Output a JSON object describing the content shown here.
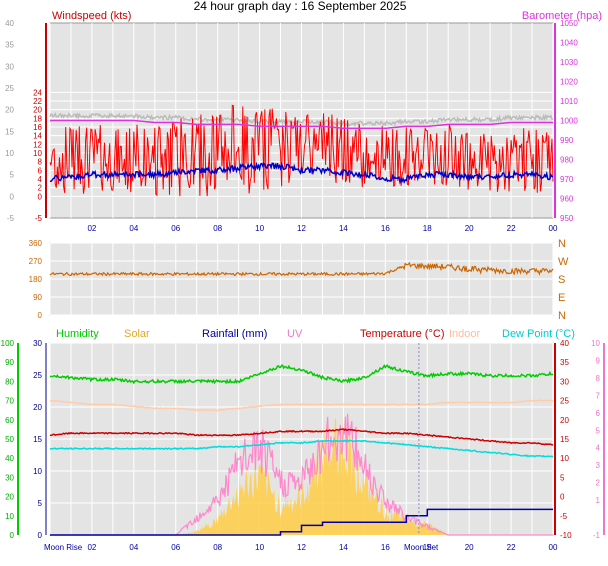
{
  "title": "24 hour graph day : 16 September 2025",
  "time_labels": [
    "02",
    "04",
    "06",
    "08",
    "10",
    "12",
    "14",
    "16",
    "18",
    "20",
    "22",
    "00"
  ],
  "colors": {
    "windspeed": "#ff0000",
    "gust_bar": "#ee1111",
    "wind_avg": "#0000cc",
    "barometer": "#dd33dd",
    "barometer_max": "#bbbbbb",
    "direction": "#cc6600",
    "humidity": "#00cc00",
    "solar": "#ffcc44",
    "rainfall": "#0000aa",
    "uv": "#ff88cc",
    "temperature": "#cc0000",
    "indoor": "#ffccaa",
    "dewpoint": "#00dddd",
    "plot_bg": "#e4e4e4",
    "grid": "#ffffff"
  },
  "chart_data": [
    {
      "type": "line",
      "label_left": "Windspeed (kts)",
      "label_right": "Barometer (hpa)",
      "y_left_ticks": [
        "-5",
        "0",
        "2",
        "4",
        "6",
        "8",
        "10",
        "12",
        "14",
        "16",
        "18",
        "20",
        "22",
        "24"
      ],
      "y_left_outer_ticks": [
        "-5",
        "0",
        "5",
        "10",
        "15",
        "20",
        "25",
        "30",
        "35",
        "40"
      ],
      "y_right_ticks": [
        "950",
        "960",
        "970",
        "980",
        "990",
        "1000",
        "1010",
        "1020",
        "1030",
        "1040",
        "1050"
      ],
      "x_hours": [
        0,
        1,
        2,
        3,
        4,
        5,
        6,
        7,
        8,
        9,
        10,
        11,
        12,
        13,
        14,
        15,
        16,
        17,
        18,
        19,
        20,
        21,
        22,
        23,
        24
      ],
      "series": [
        {
          "name": "Windspeed (kts)",
          "values": [
            8,
            8.5,
            9,
            8.5,
            8,
            8.5,
            9,
            9.5,
            10,
            10.5,
            11,
            11,
            11.5,
            11,
            10.5,
            10,
            9.5,
            9,
            9,
            8.5,
            8,
            8,
            8.5,
            8,
            8
          ]
        },
        {
          "name": "Gust",
          "values": [
            13,
            14,
            14,
            13,
            13,
            14,
            15,
            16,
            17,
            18,
            18,
            17,
            16,
            16,
            15,
            15,
            14,
            13,
            13,
            13,
            12,
            12,
            13,
            13,
            12
          ]
        },
        {
          "name": "Average",
          "values": [
            4,
            4.5,
            5,
            5,
            5,
            5,
            5.5,
            6,
            6,
            6.5,
            7,
            7,
            6,
            6,
            5.5,
            5,
            4,
            4,
            5,
            5,
            4.5,
            4.5,
            5,
            5,
            4.5
          ]
        },
        {
          "name": "Barometer (hpa)",
          "values": [
            1000,
            1000,
            1000,
            1000,
            1000,
            999,
            999,
            998,
            998,
            998,
            997,
            997,
            997,
            997,
            996,
            996,
            996,
            997,
            997,
            998,
            998,
            998,
            999,
            999,
            999
          ]
        }
      ]
    },
    {
      "type": "line",
      "y_ticks": [
        "0",
        "90",
        "180",
        "270",
        "360"
      ],
      "compass_labels": [
        "N",
        "W",
        "S",
        "E",
        "N"
      ],
      "x_hours": [
        0,
        1,
        2,
        3,
        4,
        5,
        6,
        7,
        8,
        9,
        10,
        11,
        12,
        13,
        14,
        15,
        16,
        17,
        18,
        19,
        20,
        21,
        22,
        23,
        24
      ],
      "series": [
        {
          "name": "Direction",
          "values": [
            205,
            205,
            205,
            205,
            205,
            205,
            205,
            205,
            205,
            205,
            205,
            205,
            205,
            205,
            205,
            205,
            208,
            248,
            245,
            240,
            230,
            225,
            220,
            220,
            220
          ]
        }
      ]
    },
    {
      "type": "line",
      "legend": [
        "Humidity",
        "Solar",
        "Rainfall (mm)",
        "UV",
        "Temperature (°C)",
        "Indoor",
        "Dew Point (°C)"
      ],
      "y_humidity_ticks": [
        "0",
        "10",
        "20",
        "30",
        "40",
        "50",
        "60",
        "70",
        "80",
        "90",
        "100"
      ],
      "y_rain_ticks": [
        "0",
        "5",
        "10",
        "15",
        "20",
        "25",
        "30"
      ],
      "y_temp_ticks": [
        "-10",
        "-5",
        "0",
        "5",
        "10",
        "15",
        "20",
        "25",
        "30",
        "35",
        "40"
      ],
      "y_uv_ticks": [
        "-1",
        "1",
        "2",
        "3",
        "4",
        "5",
        "6",
        "7",
        "8",
        "9",
        "10"
      ],
      "x_hours": [
        0,
        1,
        2,
        3,
        4,
        5,
        6,
        7,
        8,
        9,
        10,
        11,
        12,
        13,
        14,
        15,
        16,
        17,
        18,
        19,
        20,
        21,
        22,
        23,
        24
      ],
      "series": [
        {
          "name": "Humidity",
          "values": [
            83,
            82,
            81,
            81,
            80,
            80,
            80,
            80,
            80,
            80,
            84,
            88,
            86,
            82,
            80,
            82,
            88,
            85,
            83,
            84,
            84,
            83,
            83,
            83,
            84
          ]
        },
        {
          "name": "Temperature (°C)",
          "values": [
            16,
            16.5,
            16.5,
            16.5,
            16.5,
            16.5,
            16.5,
            16,
            16,
            16,
            16.5,
            17,
            17,
            17,
            17.5,
            17,
            16.5,
            16.5,
            16,
            15.5,
            15,
            14.5,
            14,
            14,
            13.5
          ]
        },
        {
          "name": "Indoor",
          "values": [
            25,
            24.5,
            24,
            24,
            23.5,
            23,
            23,
            22.5,
            22.5,
            23,
            23.5,
            24,
            24,
            24,
            24,
            24,
            24,
            24,
            24,
            24.5,
            24.5,
            24.5,
            24.5,
            25,
            25
          ]
        },
        {
          "name": "Dew Point (°C)",
          "values": [
            12.5,
            12.5,
            12.5,
            12.5,
            12.5,
            12.5,
            12.5,
            12.5,
            13,
            13,
            13.5,
            14,
            14,
            14.5,
            14.5,
            14.5,
            14,
            13.5,
            13,
            12.5,
            12,
            11.5,
            11,
            10.5,
            10.5
          ]
        },
        {
          "name": "Solar",
          "values": [
            0,
            0,
            0,
            0,
            0,
            0,
            0,
            0.5,
            2,
            6,
            8,
            4,
            5,
            11,
            13,
            7,
            3,
            2,
            1.5,
            0,
            0,
            0,
            0,
            0,
            0
          ]
        },
        {
          "name": "UV",
          "values": [
            0,
            0,
            0,
            0,
            0,
            0,
            0,
            1,
            2,
            4,
            5,
            3,
            3,
            5,
            6,
            4,
            2,
            1,
            0.5,
            0,
            0,
            0,
            0,
            0,
            0
          ]
        },
        {
          "name": "Rainfall (mm)",
          "values": [
            0,
            0,
            0,
            0,
            0,
            0,
            0,
            0,
            0,
            0,
            0,
            0.5,
            1.5,
            2,
            2,
            2,
            2,
            3,
            4,
            4,
            4,
            4,
            4,
            4,
            4
          ]
        }
      ],
      "moon_rise": "Moon Rise",
      "moon_set": "Moon Set"
    }
  ]
}
